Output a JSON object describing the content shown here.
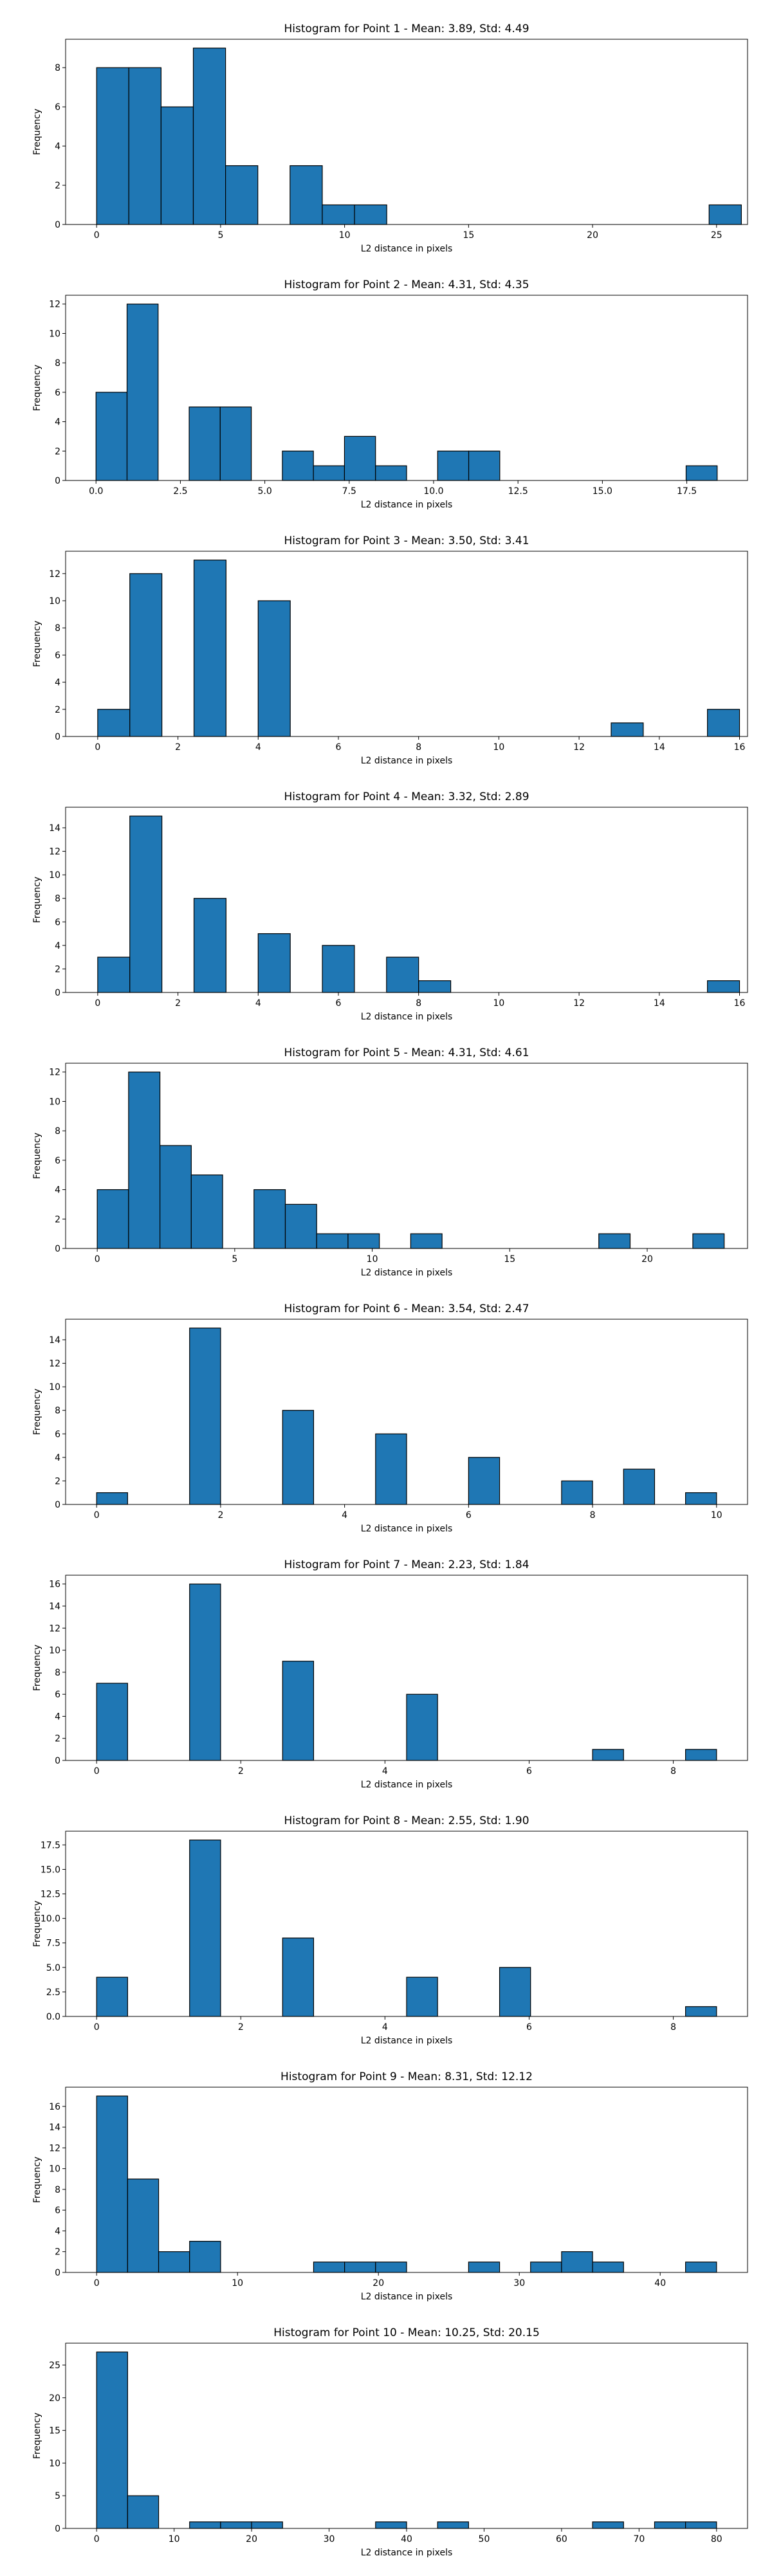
{
  "style": {
    "bar_color": "#1f77b4",
    "edge_color": "#000000"
  },
  "chart_data": [
    {
      "type": "bar",
      "title": "Histogram for Point 1 - Mean: 3.89, Std: 4.49",
      "xlabel": "L2 distance in pixels",
      "ylabel": "Frequency",
      "xlim": [
        -1.25,
        26.25
      ],
      "ylim": [
        0,
        9.45
      ],
      "xticks": [
        0,
        5,
        10,
        15,
        20,
        25
      ],
      "xticklabels": [
        "0",
        "5",
        "10",
        "15",
        "20",
        "25"
      ],
      "yticks": [
        0,
        2,
        4,
        6,
        8
      ],
      "yticklabels": [
        "0",
        "2",
        "4",
        "6",
        "8"
      ],
      "bin_start": 0,
      "bin_width": 1.3,
      "counts": [
        8,
        8,
        6,
        9,
        3,
        0,
        3,
        1,
        1,
        0,
        0,
        0,
        0,
        0,
        0,
        0,
        0,
        0,
        0,
        1
      ]
    },
    {
      "type": "bar",
      "title": "Histogram for Point 2 - Mean: 4.31, Std: 4.35",
      "xlabel": "L2 distance in pixels",
      "ylabel": "Frequency",
      "xlim": [
        -0.9,
        19.3
      ],
      "ylim": [
        0,
        12.6
      ],
      "xticks": [
        0,
        2.5,
        5,
        7.5,
        10,
        12.5,
        15,
        17.5
      ],
      "xticklabels": [
        "0.0",
        "2.5",
        "5.0",
        "7.5",
        "10.0",
        "12.5",
        "15.0",
        "17.5"
      ],
      "yticks": [
        0,
        2,
        4,
        6,
        8,
        10,
        12
      ],
      "yticklabels": [
        "0",
        "2",
        "4",
        "6",
        "8",
        "10",
        "12"
      ],
      "bin_start": 0,
      "bin_width": 0.92,
      "counts": [
        6,
        12,
        0,
        5,
        5,
        0,
        2,
        1,
        3,
        1,
        0,
        2,
        2,
        0,
        0,
        0,
        0,
        0,
        0,
        1
      ]
    },
    {
      "type": "bar",
      "title": "Histogram for Point 3 - Mean: 3.50, Std: 3.41",
      "xlabel": "L2 distance in pixels",
      "ylabel": "Frequency",
      "xlim": [
        -0.8,
        16.2
      ],
      "ylim": [
        0,
        13.65
      ],
      "xticks": [
        0,
        2,
        4,
        6,
        8,
        10,
        12,
        14,
        16
      ],
      "xticklabels": [
        "0",
        "2",
        "4",
        "6",
        "8",
        "10",
        "12",
        "14",
        "16"
      ],
      "yticks": [
        0,
        2,
        4,
        6,
        8,
        10,
        12
      ],
      "yticklabels": [
        "0",
        "2",
        "4",
        "6",
        "8",
        "10",
        "12"
      ],
      "bin_start": 0,
      "bin_width": 0.8,
      "counts": [
        2,
        12,
        0,
        13,
        0,
        10,
        0,
        0,
        0,
        0,
        0,
        0,
        0,
        0,
        0,
        0,
        1,
        0,
        0,
        2
      ]
    },
    {
      "type": "bar",
      "title": "Histogram for Point 4 - Mean: 3.32, Std: 2.89",
      "xlabel": "L2 distance in pixels",
      "ylabel": "Frequency",
      "xlim": [
        -0.8,
        16.2
      ],
      "ylim": [
        0,
        15.75
      ],
      "xticks": [
        0,
        2,
        4,
        6,
        8,
        10,
        12,
        14,
        16
      ],
      "xticklabels": [
        "0",
        "2",
        "4",
        "6",
        "8",
        "10",
        "12",
        "14",
        "16"
      ],
      "yticks": [
        0,
        2,
        4,
        6,
        8,
        10,
        12,
        14
      ],
      "yticklabels": [
        "0",
        "2",
        "4",
        "6",
        "8",
        "10",
        "12",
        "14"
      ],
      "bin_start": 0,
      "bin_width": 0.8,
      "counts": [
        3,
        15,
        0,
        8,
        0,
        5,
        0,
        4,
        0,
        3,
        1,
        0,
        0,
        0,
        0,
        0,
        0,
        0,
        0,
        1
      ]
    },
    {
      "type": "bar",
      "title": "Histogram for Point 5 - Mean: 4.31, Std: 4.61",
      "xlabel": "L2 distance in pixels",
      "ylabel": "Frequency",
      "xlim": [
        -1.15,
        23.65
      ],
      "ylim": [
        0,
        12.6
      ],
      "xticks": [
        0,
        5,
        10,
        15,
        20
      ],
      "xticklabels": [
        "0",
        "5",
        "10",
        "15",
        "20"
      ],
      "yticks": [
        0,
        2,
        4,
        6,
        8,
        10,
        12
      ],
      "yticklabels": [
        "0",
        "2",
        "4",
        "6",
        "8",
        "10",
        "12"
      ],
      "bin_start": 0,
      "bin_width": 1.14,
      "counts": [
        4,
        12,
        7,
        5,
        0,
        4,
        3,
        1,
        1,
        0,
        1,
        0,
        0,
        0,
        0,
        0,
        1,
        0,
        0,
        1
      ]
    },
    {
      "type": "bar",
      "title": "Histogram for Point 6 - Mean: 3.54, Std: 2.47",
      "xlabel": "L2 distance in pixels",
      "ylabel": "Frequency",
      "xlim": [
        -0.5,
        10.5
      ],
      "ylim": [
        0,
        15.75
      ],
      "xticks": [
        0,
        2,
        4,
        6,
        8,
        10
      ],
      "xticklabels": [
        "0",
        "2",
        "4",
        "6",
        "8",
        "10"
      ],
      "yticks": [
        0,
        2,
        4,
        6,
        8,
        10,
        12,
        14
      ],
      "yticklabels": [
        "0",
        "2",
        "4",
        "6",
        "8",
        "10",
        "12",
        "14"
      ],
      "bin_start": 0,
      "bin_width": 0.5,
      "counts": [
        1,
        0,
        0,
        15,
        0,
        0,
        8,
        0,
        0,
        6,
        0,
        0,
        4,
        0,
        0,
        2,
        0,
        3,
        0,
        1
      ]
    },
    {
      "type": "bar",
      "title": "Histogram for Point 7 - Mean: 2.23, Std: 1.84",
      "xlabel": "L2 distance in pixels",
      "ylabel": "Frequency",
      "xlim": [
        -0.43,
        9.03
      ],
      "ylim": [
        0,
        16.8
      ],
      "xticks": [
        0,
        2,
        4,
        6,
        8
      ],
      "xticklabels": [
        "0",
        "2",
        "4",
        "6",
        "8"
      ],
      "yticks": [
        0,
        2,
        4,
        6,
        8,
        10,
        12,
        14,
        16
      ],
      "yticklabels": [
        "0",
        "2",
        "4",
        "6",
        "8",
        "10",
        "12",
        "14",
        "16"
      ],
      "bin_start": 0,
      "bin_width": 0.43,
      "counts": [
        7,
        0,
        0,
        16,
        0,
        0,
        9,
        0,
        0,
        0,
        6,
        0,
        0,
        0,
        0,
        0,
        1,
        0,
        0,
        1
      ]
    },
    {
      "type": "bar",
      "title": "Histogram for Point 8 - Mean: 2.55, Std: 1.90",
      "xlabel": "L2 distance in pixels",
      "ylabel": "Frequency",
      "xlim": [
        -0.43,
        9.03
      ],
      "ylim": [
        0,
        18.9
      ],
      "xticks": [
        0,
        2,
        4,
        6,
        8
      ],
      "xticklabels": [
        "0",
        "2",
        "4",
        "6",
        "8"
      ],
      "yticks": [
        0,
        2.5,
        5,
        7.5,
        10,
        12.5,
        15,
        17.5
      ],
      "yticklabels": [
        "0.0",
        "2.5",
        "5.0",
        "7.5",
        "10.0",
        "12.5",
        "15.0",
        "17.5"
      ],
      "bin_start": 0,
      "bin_width": 0.43,
      "counts": [
        4,
        0,
        0,
        18,
        0,
        0,
        8,
        0,
        0,
        0,
        4,
        0,
        0,
        5,
        0,
        0,
        0,
        0,
        0,
        1
      ]
    },
    {
      "type": "bar",
      "title": "Histogram for Point 9 - Mean: 8.31, Std: 12.12",
      "xlabel": "L2 distance in pixels",
      "ylabel": "Frequency",
      "xlim": [
        -2.2,
        46.2
      ],
      "ylim": [
        0,
        17.85
      ],
      "xticks": [
        0,
        10,
        20,
        30,
        40
      ],
      "xticklabels": [
        "0",
        "10",
        "20",
        "30",
        "40"
      ],
      "yticks": [
        0,
        2,
        4,
        6,
        8,
        10,
        12,
        14,
        16
      ],
      "yticklabels": [
        "0",
        "2",
        "4",
        "6",
        "8",
        "10",
        "12",
        "14",
        "16"
      ],
      "bin_start": 0,
      "bin_width": 2.2,
      "counts": [
        17,
        9,
        2,
        3,
        0,
        0,
        0,
        1,
        1,
        1,
        0,
        0,
        1,
        0,
        1,
        2,
        1,
        0,
        0,
        1
      ]
    },
    {
      "type": "bar",
      "title": "Histogram for Point 10 - Mean: 10.25, Std: 20.15",
      "xlabel": "L2 distance in pixels",
      "ylabel": "Frequency",
      "xlim": [
        -4.0,
        84.0
      ],
      "ylim": [
        0,
        28.35
      ],
      "xticks": [
        0,
        10,
        20,
        30,
        40,
        50,
        60,
        70,
        80
      ],
      "xticklabels": [
        "0",
        "10",
        "20",
        "30",
        "40",
        "50",
        "60",
        "70",
        "80"
      ],
      "yticks": [
        0,
        5,
        10,
        15,
        20,
        25
      ],
      "yticklabels": [
        "0",
        "5",
        "10",
        "15",
        "20",
        "25"
      ],
      "bin_start": 0,
      "bin_width": 4.0,
      "counts": [
        27,
        5,
        0,
        1,
        1,
        1,
        0,
        0,
        0,
        1,
        0,
        1,
        0,
        0,
        0,
        0,
        1,
        0,
        1,
        1
      ]
    }
  ]
}
